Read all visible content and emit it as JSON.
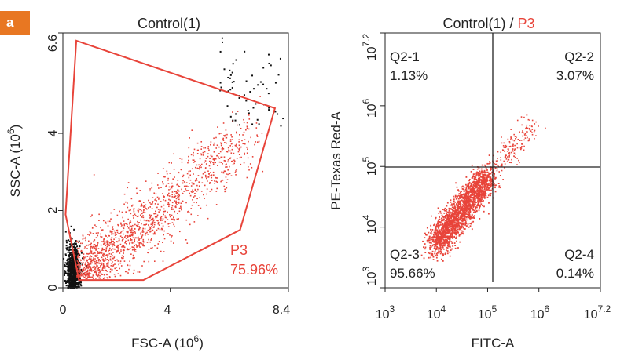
{
  "panel_label": "a",
  "chart_data": [
    {
      "type": "scatter",
      "title": "Control(1)",
      "xlabel": "FSC-A (10^6)",
      "ylabel": "SSC-A (10^6)",
      "xlim": [
        0,
        8.4
      ],
      "ylim": [
        0,
        6.6
      ],
      "x_ticks": [
        "0",
        "4",
        "8.4"
      ],
      "y_ticks": [
        "0",
        "2",
        "4",
        "6.6"
      ],
      "axis_label_parts": {
        "x_text": "FSC-A",
        "y_text": "SSC-A",
        "exp_base": "(10",
        "exp_power": "6",
        "exp_close": ")"
      },
      "gate": {
        "name": "P3",
        "percent": "75.96%",
        "color": "#e8443a",
        "polygon": [
          [
            0.1,
            1.9
          ],
          [
            0.5,
            6.4
          ],
          [
            7.9,
            4.65
          ],
          [
            6.6,
            1.5
          ],
          [
            3.0,
            0.2
          ],
          [
            0.6,
            0.2
          ]
        ]
      },
      "series_colors": {
        "gated": "#e8443a",
        "ungated": "#111111"
      }
    },
    {
      "type": "scatter",
      "title_main": "Control(1) / ",
      "title_gate": "P3",
      "xlabel": "FITC-A",
      "ylabel": "PE-Texas Red-A",
      "scale": "log10",
      "xlim_log": [
        3,
        7.2
      ],
      "ylim_log": [
        3,
        7.2
      ],
      "x_ticks": [
        {
          "base": "10",
          "exp": "3"
        },
        {
          "base": "10",
          "exp": "4"
        },
        {
          "base": "10",
          "exp": "5"
        },
        {
          "base": "10",
          "exp": "6"
        },
        {
          "base": "10",
          "exp": "7.2"
        }
      ],
      "y_ticks": [
        {
          "base": "10",
          "exp": "3"
        },
        {
          "base": "10",
          "exp": "4"
        },
        {
          "base": "10",
          "exp": "5"
        },
        {
          "base": "10",
          "exp": "6"
        },
        {
          "base": "10",
          "exp": "7.2"
        }
      ],
      "quadrant_divider_log": {
        "x": 5.1,
        "y": 5.0
      },
      "quadrants": [
        {
          "name": "Q2-1",
          "percent": "1.13%"
        },
        {
          "name": "Q2-2",
          "percent": "3.07%"
        },
        {
          "name": "Q2-3",
          "percent": "95.66%"
        },
        {
          "name": "Q2-4",
          "percent": "0.14%"
        }
      ],
      "series_colors": {
        "events": "#e8443a"
      }
    }
  ]
}
